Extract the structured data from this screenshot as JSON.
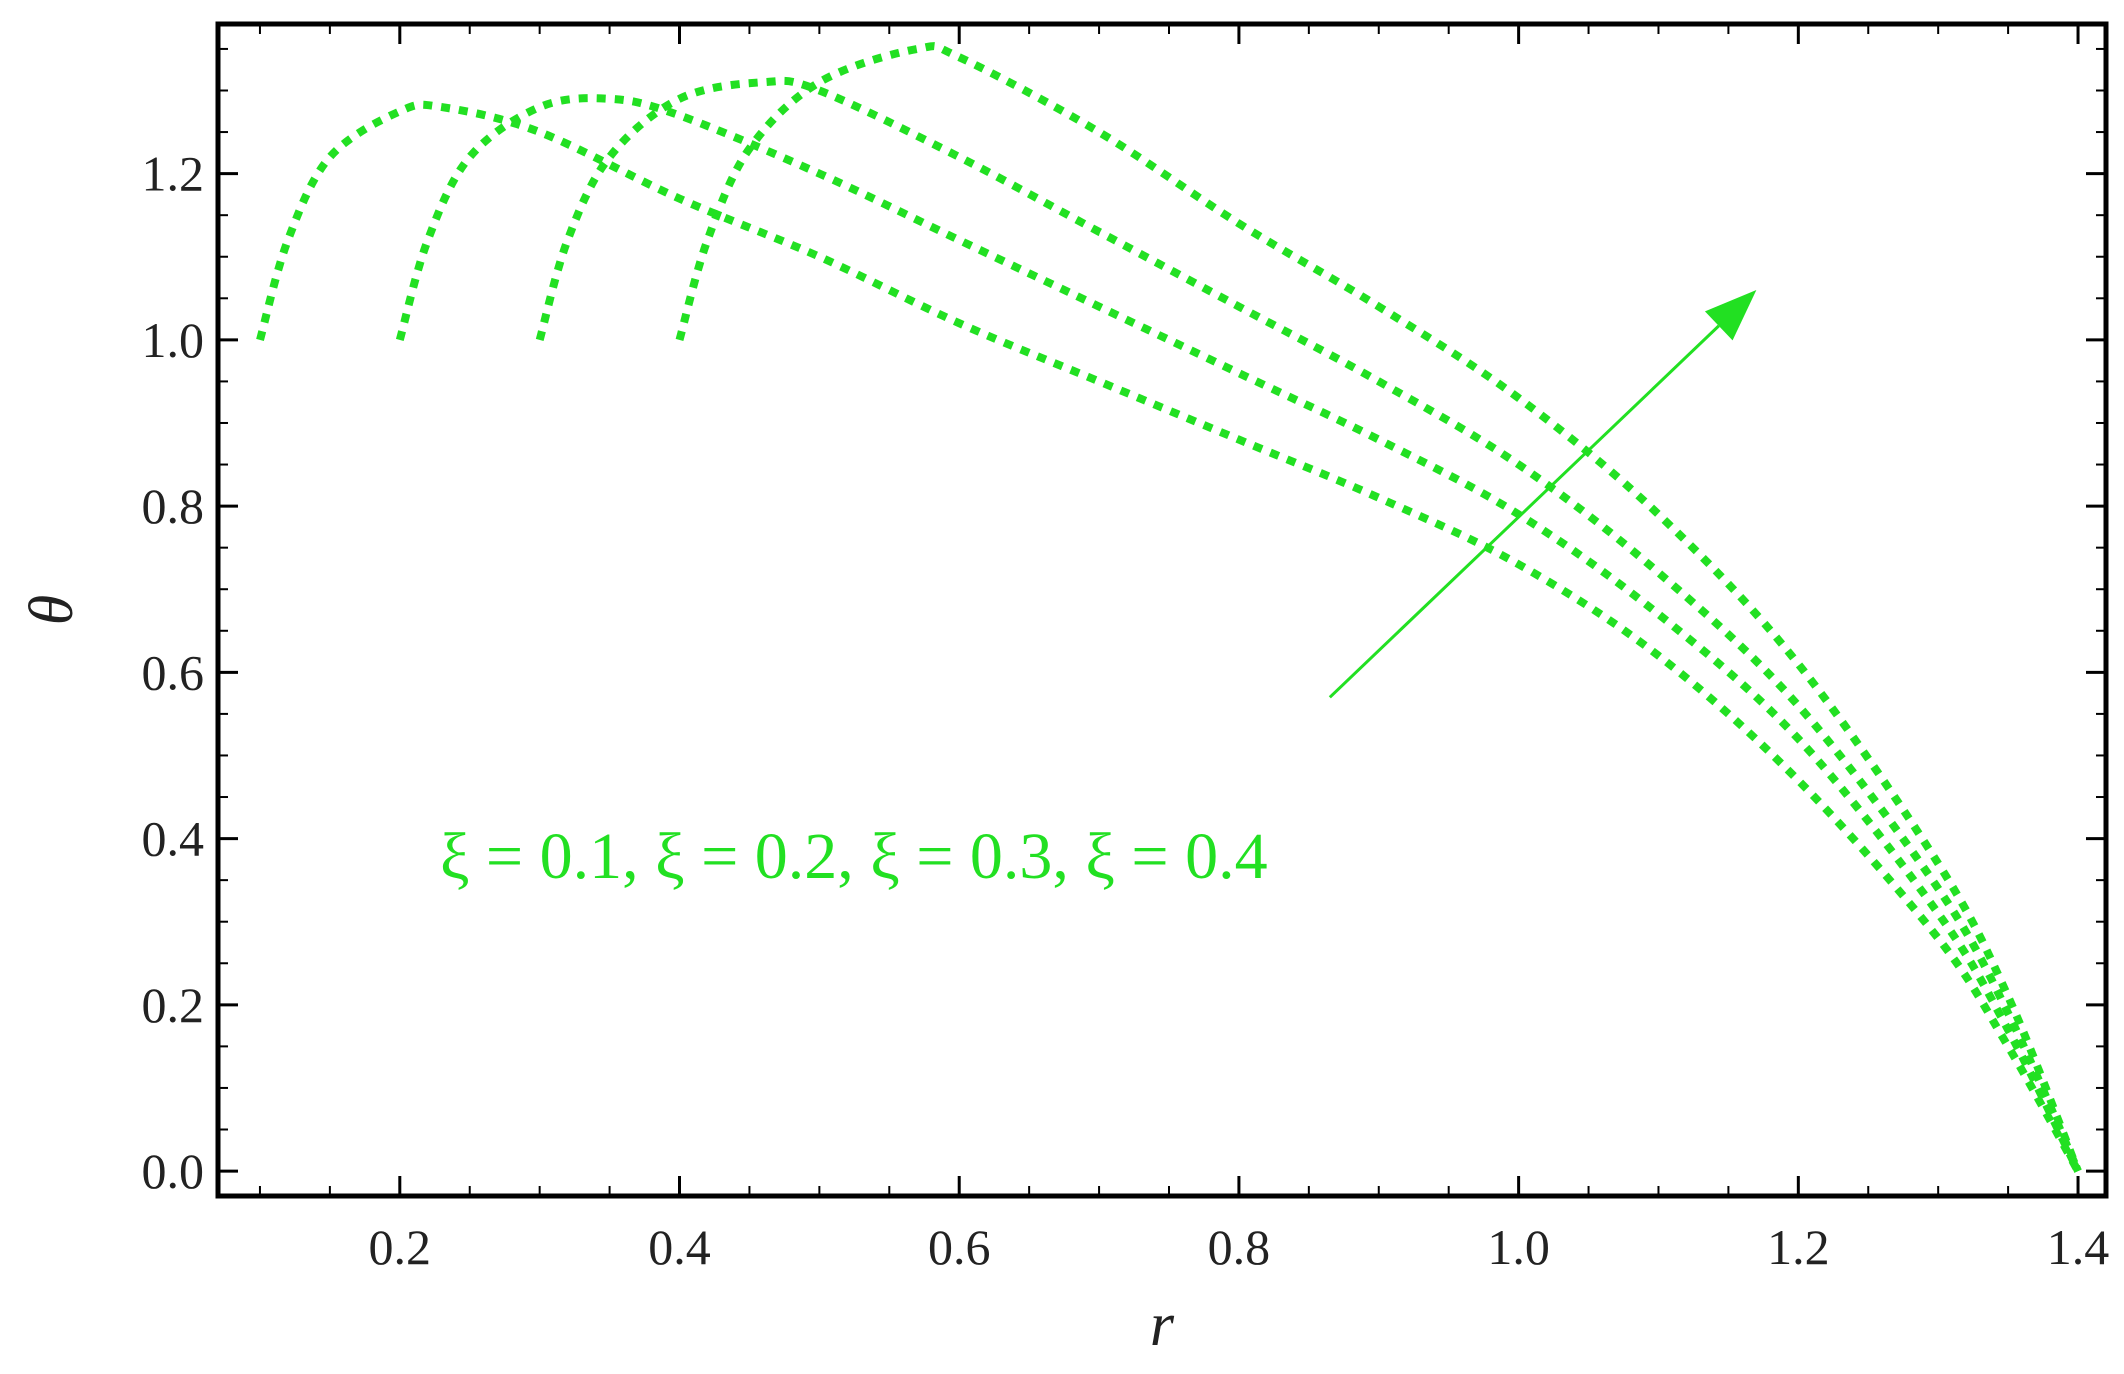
{
  "chart_data": {
    "type": "line",
    "xlabel": "r",
    "ylabel": "θ",
    "xlim": [
      0.07,
      1.42
    ],
    "ylim": [
      -0.03,
      1.38
    ],
    "x_ticks": [
      "0.2",
      "0.4",
      "0.6",
      "0.8",
      "1.0",
      "1.2",
      "1.4"
    ],
    "y_ticks": [
      "0.0",
      "0.2",
      "0.4",
      "0.6",
      "0.8",
      "1.0",
      "1.2"
    ],
    "grid": false,
    "line_style": "dotted",
    "color": "#22e022",
    "annotation": "ξ = 0.1, ξ = 0.2, ξ = 0.3, ξ = 0.4",
    "arrow": {
      "from": [
        0.865,
        0.57
      ],
      "to": [
        1.17,
        1.06
      ],
      "meaning": "increasing ξ"
    },
    "series": [
      {
        "x": [
          0.1,
          0.12,
          0.15,
          0.2,
          0.23,
          0.3,
          0.4,
          0.5,
          0.6,
          0.7,
          0.8,
          0.9,
          1.0,
          1.1,
          1.2,
          1.3,
          1.35,
          1.4
        ],
        "y": [
          1.0,
          1.12,
          1.22,
          1.275,
          1.28,
          1.25,
          1.17,
          1.1,
          1.02,
          0.95,
          0.88,
          0.81,
          0.73,
          0.62,
          0.47,
          0.28,
          0.15,
          0.0
        ]
      },
      {
        "x": [
          0.2,
          0.22,
          0.25,
          0.3,
          0.35,
          0.4,
          0.5,
          0.6,
          0.7,
          0.8,
          0.9,
          1.0,
          1.1,
          1.2,
          1.3,
          1.35,
          1.4
        ],
        "y": [
          1.0,
          1.12,
          1.22,
          1.28,
          1.29,
          1.27,
          1.2,
          1.12,
          1.04,
          0.96,
          0.88,
          0.79,
          0.67,
          0.52,
          0.31,
          0.17,
          0.0
        ]
      },
      {
        "x": [
          0.3,
          0.32,
          0.35,
          0.4,
          0.46,
          0.5,
          0.6,
          0.7,
          0.8,
          0.9,
          1.0,
          1.1,
          1.2,
          1.3,
          1.35,
          1.4
        ],
        "y": [
          1.0,
          1.12,
          1.22,
          1.29,
          1.31,
          1.3,
          1.22,
          1.13,
          1.04,
          0.95,
          0.85,
          0.72,
          0.56,
          0.34,
          0.19,
          0.0
        ]
      },
      {
        "x": [
          0.4,
          0.42,
          0.45,
          0.5,
          0.57,
          0.6,
          0.7,
          0.8,
          0.9,
          1.0,
          1.1,
          1.2,
          1.3,
          1.35,
          1.4
        ],
        "y": [
          1.0,
          1.12,
          1.23,
          1.31,
          1.35,
          1.34,
          1.25,
          1.14,
          1.04,
          0.93,
          0.79,
          0.61,
          0.37,
          0.21,
          0.0
        ]
      }
    ]
  }
}
